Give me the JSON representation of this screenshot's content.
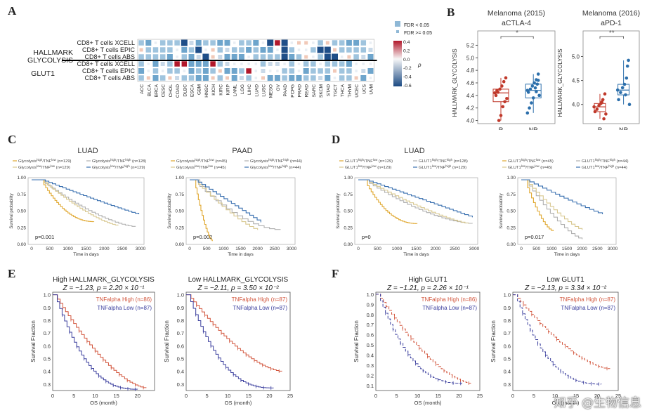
{
  "panels": {
    "A": "A",
    "B": "B",
    "C": "C",
    "D": "D",
    "E": "E",
    "F": "F"
  },
  "heatmap": {
    "groups": [
      "HALLMARK",
      "GLYCOLYSIS",
      "GLUT1"
    ],
    "rows": [
      "CD8+ T cells XCELL",
      "CD8+ T cells EPIC",
      "CD8+ T cells ABS",
      "CD8+ T cells XCELL",
      "CD8+ T cells EPIC",
      "CD8+ T cells ABS"
    ],
    "cols": [
      "ACC",
      "BLCA",
      "BRCA",
      "CESC",
      "CHOL",
      "COAD",
      "DLBC",
      "ESCA",
      "GBM",
      "HNSC",
      "KICH",
      "KIRC",
      "KIRP",
      "LAML",
      "LGG",
      "LIHC",
      "LUAD",
      "LUSC",
      "MESO",
      "OV",
      "PAAD",
      "PCPG",
      "PRAD",
      "READ",
      "SARC",
      "SKCM",
      "STAD",
      "TGCT",
      "THCA",
      "THYM",
      "UCEC",
      "UCS",
      "UVM"
    ],
    "legend": {
      "fdr_low": "FDR < 0.05",
      "fdr_high": "FDR >= 0.05",
      "rho": "ρ",
      "ticks": [
        "0.4",
        "0.2",
        "0.0",
        "-0.2",
        "-0.4",
        "-0.6"
      ]
    },
    "colors": {
      "pos": "#b2182b",
      "neg": "#2166ac",
      "mid": "#f7f7f7"
    }
  },
  "boxplots": [
    {
      "title1": "Melanoma (2015)",
      "title2": "aCTLA-4",
      "ylabel": "HALLMARK_GLYCOLYSIS",
      "sig": "*",
      "groups": [
        "R",
        "NR"
      ],
      "yticks": [
        "4.0",
        "4.2",
        "4.4",
        "4.6",
        "4.8",
        "5.0",
        "5.2"
      ]
    },
    {
      "title1": "Melanoma (2016)",
      "title2": "aPD-1",
      "ylabel": "HALLMARK_GLYCOLYSIS",
      "sig": "**",
      "groups": [
        "R",
        "NR"
      ],
      "yticks": [
        "4.0",
        "4.5",
        "5.0"
      ]
    }
  ],
  "km_cd": [
    {
      "title": "LUAD",
      "legend": [
        "Glycolysis^high/TNF^low (n=129)",
        "Glycolysis^high/TNF^high (n=128)",
        "Glycolysis^low/TNF^low (n=129)",
        "Glycolysis^low/TNF^high (n=129)"
      ],
      "pval": "p=0.001",
      "xlabel": "Time in days",
      "ylabel": "Survival probability",
      "xticks": [
        "0",
        "500",
        "1000",
        "1500",
        "2000",
        "2500",
        "3000"
      ],
      "yticks": [
        "0.00",
        "0.25",
        "0.50",
        "0.75",
        "1.00"
      ]
    },
    {
      "title": "PAAD",
      "legend": [
        "Glycolysis^high/TNF^low (n=45)",
        "Glycolysis^high/TNF^high (n=44)",
        "Glycolysis^low/TNF^low (n=45)",
        "Glycolysis^low/TNF^high (n=44)"
      ],
      "pval": "p=0.002",
      "xlabel": "Time in days",
      "ylabel": "Survival probability",
      "xticks": [
        "0",
        "500",
        "1000",
        "1500",
        "2000",
        "2500",
        "3000"
      ],
      "yticks": [
        "0.00",
        "0.25",
        "0.50",
        "0.75",
        "1.00"
      ]
    },
    {
      "title": "LUAD",
      "legend": [
        "GLUT1^high/TNF^low (n=129)",
        "GLUT1^high/TNF^high (n=128)",
        "GLUT1^low/TNF^low (n=129)",
        "GLUT1^low/TNF^high (n=129)"
      ],
      "pval": "p=0",
      "xlabel": "Time in days",
      "ylabel": "Survival probability",
      "xticks": [
        "0",
        "500",
        "1000",
        "1500",
        "2000",
        "2500",
        "3000"
      ],
      "yticks": [
        "0.00",
        "0.25",
        "0.50",
        "0.75",
        "1.00"
      ]
    },
    {
      "title": "",
      "legend": [
        "GLUT1^high/TNF^low (n=45)",
        "GLUT1^high/TNF^high (n=44)",
        "GLUT1^low/TNF^low (n=45)",
        "GLUT1^low/TNF^high (n=44)"
      ],
      "pval": "p=0.017",
      "xlabel": "Time in days",
      "ylabel": "Survival probability",
      "xticks": [
        "0",
        "500",
        "1000",
        "1500",
        "2000",
        "2500",
        "3000"
      ],
      "yticks": [
        "0.00",
        "0.25",
        "0.50",
        "0.75",
        "1.00"
      ]
    }
  ],
  "km_ef": [
    {
      "title": "High HALLMARK_GLYCOLYSIS",
      "stat": "Z = −1.23, p = 2.20 × 10⁻¹",
      "high": "TNFalpha High (n=86)",
      "low": "TNFalpha Low (n=87)",
      "xlabel": "OS (month)",
      "ylabel": "Survival Fraction",
      "xticks": [
        "0",
        "5",
        "10",
        "15",
        "20"
      ],
      "yticks": [
        "0.3",
        "0.4",
        "0.5",
        "0.6",
        "0.7",
        "0.8",
        "0.9",
        "1.0"
      ]
    },
    {
      "title": "Low HALLMARK_GLYCOLYSIS",
      "stat": "Z = −2.11, p = 3.50 × 10⁻²",
      "high": "TNFalpha High (n=87)",
      "low": "TNFalpha Low (n=87)",
      "xlabel": "OS (month)",
      "ylabel": "Survival Fraction",
      "xticks": [
        "0",
        "5",
        "10",
        "15",
        "20",
        "25"
      ],
      "yticks": [
        "0.3",
        "0.4",
        "0.5",
        "0.6",
        "0.7",
        "0.8",
        "0.9",
        "1.0"
      ]
    },
    {
      "title": "High GLUT1",
      "stat": "Z = −1.21, p = 2.26 × 10⁻¹",
      "high": "TNFalpha High (n=86)",
      "low": "TNFalpha Low (n=87)",
      "xlabel": "OS (month)",
      "ylabel": "Survival Fraction",
      "xticks": [
        "0",
        "5",
        "10",
        "15",
        "20",
        "25"
      ],
      "yticks": [
        "0.1",
        "0.2",
        "0.3",
        "0.4",
        "0.5",
        "0.6",
        "0.7",
        "0.8",
        "0.9",
        "1.0"
      ]
    },
    {
      "title": "Low GLUT1",
      "stat": "Z = −2.13, p = 3.34 × 10⁻²",
      "high": "TNFalpha High (n=87)",
      "low": "TNFalpha Low (n=87)",
      "xlabel": "OS (month)",
      "ylabel": "Survival Fraction",
      "xticks": [
        "0",
        "5",
        "10",
        "15",
        "20",
        "25"
      ],
      "yticks": [
        "0.3",
        "0.4",
        "0.5",
        "0.6",
        "0.7",
        "0.8",
        "0.9",
        "1.0"
      ]
    }
  ],
  "watermark": "知乎 @生物信息",
  "chart_data": [
    {
      "type": "heatmap",
      "title": "",
      "rows": 6,
      "cols": 33,
      "colorbar_range": [
        -0.6,
        0.4
      ]
    },
    {
      "type": "scatter",
      "title": "Melanoma (2015) aCTLA-4",
      "categories": [
        "R",
        "NR"
      ],
      "ylabel": "HALLMARK_GLYCOLYSIS",
      "ylim": [
        3.95,
        5.25
      ],
      "series": [
        {
          "name": "R",
          "values": [
            4.44,
            4.68,
            4.62,
            4.55,
            4.5,
            4.45,
            4.4,
            4.35,
            4.3,
            4.22,
            4.08,
            4.0,
            4.48
          ]
        },
        {
          "name": "NR",
          "values": [
            4.48,
            4.74,
            4.65,
            4.6,
            4.55,
            4.5,
            4.45,
            4.4,
            4.58,
            4.52,
            4.36,
            4.28,
            4.2,
            4.12,
            4.64,
            4.46
          ]
        }
      ]
    },
    {
      "type": "scatter",
      "title": "Melanoma (2016) aPD-1",
      "categories": [
        "R",
        "NR"
      ],
      "ylabel": "HALLMARK_GLYCOLYSIS",
      "ylim": [
        3.6,
        5.3
      ],
      "series": [
        {
          "name": "R",
          "values": [
            3.95,
            4.22,
            4.1,
            4.02,
            3.98,
            3.9,
            3.85,
            3.8,
            3.7,
            4.05
          ]
        },
        {
          "name": "NR",
          "values": [
            4.3,
            4.92,
            4.55,
            4.42,
            4.35,
            4.25,
            4.1,
            4.0,
            4.8,
            4.2
          ]
        }
      ]
    }
  ]
}
